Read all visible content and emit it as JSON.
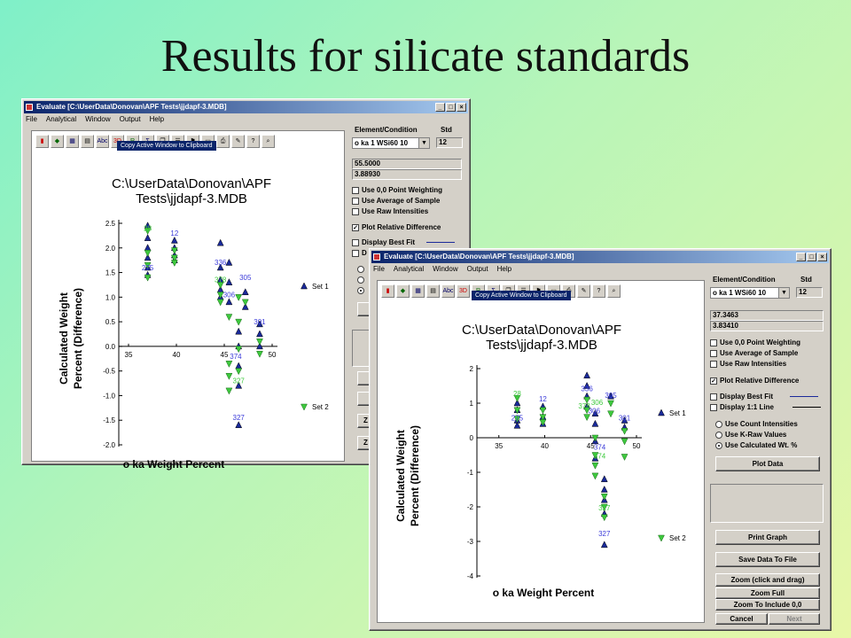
{
  "slide_title": "Results for silicate standards",
  "window_title": "Evaluate [C:\\UserData\\Donovan\\APF Tests\\jjdapf-3.MDB]",
  "menus": [
    "File",
    "Analytical",
    "Window",
    "Output",
    "Help"
  ],
  "title_buttons": [
    "_",
    "□",
    "×"
  ],
  "toolbar_icons": [
    "chart",
    "area",
    "table",
    "grid",
    "ABC",
    "3D",
    "RPT",
    "stat",
    "copy",
    "list",
    "flag",
    "folder",
    "print",
    "edit",
    "help",
    "magnify"
  ],
  "tooltip": "Copy Active Window to Clipboard",
  "colors": {
    "set1": "#1a2a9a",
    "set2": "#3ec93e",
    "label1": "#3b3bd9",
    "label2": "#3ec93e"
  },
  "panel": {
    "element_header": "Element/Condition",
    "std_header": "Std",
    "element_value": "o ka 1 WSi60 10",
    "std_value": "12",
    "options": [
      {
        "label": "Use 0,0 Point Weighting",
        "checked": false
      },
      {
        "label": "Use Average of Sample",
        "checked": false
      },
      {
        "label": "Use Raw Intensities",
        "checked": false
      }
    ],
    "plot_relative": {
      "label": "Plot Relative Difference",
      "checked": true
    },
    "best_fit": {
      "label": "Display Best Fit",
      "checked": false
    },
    "one_to_one": {
      "label": "Display 1:1 Line",
      "checked": false
    },
    "radios": [
      {
        "label": "Use Count Intensities",
        "on": false
      },
      {
        "label": "Use K-Raw Values",
        "on": false
      },
      {
        "label": "Use Calculated Wt. %",
        "on": true
      }
    ],
    "plot_button": "Plot Data",
    "print_button": "Print Graph",
    "save_button": "Save Data To File",
    "zoom_button": "Zoom (click and drag)",
    "zoom_full": "Zoom Full",
    "zoom_origin": "Zoom To Include 0,0",
    "cancel": "Cancel",
    "next": "Next"
  },
  "back_window": {
    "field1": "55.5000",
    "field2": "3.88930",
    "best_fit_partial": "D",
    "chart_title": [
      "C:\\UserData\\Donovan\\APF",
      "Tests\\jjdapf-3.MDB"
    ],
    "ylabel": [
      "Calculated Weight",
      "Percent (Difference)"
    ],
    "xlabel": "o ka Weight Percent",
    "x_ticks": [
      "35",
      "40",
      "45",
      "50"
    ],
    "y_ticks": [
      "2.5",
      "2.0",
      "1.5",
      "1.0",
      "0.5",
      "0.0",
      "-0.5",
      "-1.0",
      "-1.5",
      "-2.0"
    ],
    "legend": [
      "Set 1",
      "Set 2"
    ],
    "right_glyph": "Z"
  },
  "front_window": {
    "field1": "37.3463",
    "field2": "3.83410",
    "chart_title": [
      "C:\\UserData\\Donovan\\APF",
      "Tests\\jjdapf-3.MDB"
    ],
    "ylabel": [
      "Calculated Weight",
      "Percent (Difference)"
    ],
    "xlabel": "o ka Weight Percent",
    "x_ticks": [
      "35",
      "40",
      "45",
      "50"
    ],
    "y_ticks": [
      "2",
      "1",
      "0",
      "-1",
      "-2",
      "-3",
      "-4"
    ],
    "legend": [
      "Set 1",
      "Set 2"
    ]
  },
  "chart_data": [
    {
      "type": "scatter",
      "title": "C:\\UserData\\Donovan\\APF Tests\\jjdapf-3.MDB",
      "xlabel": "o ka Weight Percent",
      "ylabel": "Calculated Weight Percent (Difference)",
      "xlim": [
        30,
        50
      ],
      "ylim": [
        -2.0,
        2.5
      ],
      "series": [
        {
          "name": "Set 1",
          "marker": "triangle-up",
          "x": [
            37,
            37,
            37,
            37,
            37,
            37,
            39.8,
            39.8,
            39.8,
            39.8,
            44.6,
            44.6,
            44.6,
            44.6,
            44.6,
            45.5,
            45.5,
            45.5,
            46.5,
            46.5,
            46.5,
            46.5,
            46.5,
            47.2,
            47.2,
            48.7,
            48.7,
            48.7
          ],
          "y": [
            2.45,
            2.2,
            2.0,
            1.8,
            1.6,
            1.45,
            2.15,
            2.0,
            1.85,
            1.75,
            2.1,
            1.6,
            1.35,
            1.15,
            1.0,
            1.7,
            1.3,
            0.9,
            0.3,
            0.0,
            -0.4,
            -0.8,
            -1.6,
            1.1,
            0.8,
            0.45,
            0.25,
            0.0
          ]
        },
        {
          "name": "Set 2",
          "marker": "triangle-down",
          "x": [
            37,
            37,
            37,
            37,
            39.8,
            39.8,
            39.8,
            44.6,
            44.6,
            44.6,
            45.5,
            45.5,
            45.5,
            45.5,
            46.5,
            46.5,
            46.5,
            46.5,
            47.2,
            48.7,
            48.7
          ],
          "y": [
            2.35,
            1.9,
            1.65,
            1.4,
            1.95,
            1.8,
            1.7,
            1.25,
            1.05,
            0.9,
            0.6,
            -0.35,
            -0.6,
            -0.9,
            1.0,
            0.5,
            -0.05,
            -0.5,
            0.9,
            0.1,
            -0.15
          ]
        }
      ],
      "point_labels": [
        {
          "text": "28",
          "x": 37,
          "y": 2.35,
          "series": "Set 2"
        },
        {
          "text": "12",
          "x": 39.8,
          "y": 2.25,
          "series": "Set 1"
        },
        {
          "text": "275",
          "x": 37,
          "y": 1.55,
          "series": "Set 1"
        },
        {
          "text": "336",
          "x": 44.6,
          "y": 1.65,
          "series": "Set 1"
        },
        {
          "text": "378",
          "x": 44.6,
          "y": 1.3,
          "series": "Set 2"
        },
        {
          "text": "305",
          "x": 47.2,
          "y": 1.35,
          "series": "Set 1"
        },
        {
          "text": "306",
          "x": 45.5,
          "y": 1.0,
          "series": "Set 1"
        },
        {
          "text": "301",
          "x": 48.7,
          "y": 0.45,
          "series": "Set 1"
        },
        {
          "text": "374",
          "x": 46.2,
          "y": -0.25,
          "series": "Set 1"
        },
        {
          "text": "327",
          "x": 46.5,
          "y": -0.75,
          "series": "Set 2"
        },
        {
          "text": "327",
          "x": 46.5,
          "y": -1.5,
          "series": "Set 1"
        }
      ],
      "legend": "right"
    },
    {
      "type": "scatter",
      "title": "C:\\UserData\\Donovan\\APF Tests\\jjdapf-3.MDB",
      "xlabel": "o ka Weight Percent",
      "ylabel": "Calculated Weight Percent (Difference)",
      "xlim": [
        30,
        50
      ],
      "ylim": [
        -4,
        2
      ],
      "series": [
        {
          "name": "Set 1",
          "marker": "triangle-up",
          "x": [
            37,
            37,
            37,
            37,
            39.8,
            39.8,
            39.8,
            44.6,
            44.6,
            44.6,
            44.6,
            45.5,
            45.5,
            45.5,
            45.5,
            46.5,
            46.5,
            46.5,
            46.5,
            46.5,
            47.2,
            48.7,
            48.7
          ],
          "y": [
            1.0,
            0.8,
            0.5,
            0.35,
            0.9,
            0.6,
            0.4,
            1.8,
            1.5,
            1.2,
            0.9,
            0.7,
            0.4,
            -0.1,
            -0.6,
            -1.2,
            -1.5,
            -1.8,
            -2.2,
            -3.1,
            1.2,
            0.5,
            0.3
          ]
        },
        {
          "name": "Set 2",
          "marker": "triangle-down",
          "x": [
            37,
            37,
            37,
            39.8,
            39.8,
            39.8,
            44.6,
            44.6,
            44.6,
            45.5,
            45.5,
            45.5,
            45.5,
            46.5,
            46.5,
            46.5,
            47.2,
            47.2,
            48.7,
            48.7,
            48.7
          ],
          "y": [
            1.15,
            0.8,
            0.55,
            0.8,
            0.6,
            0.45,
            1.1,
            0.8,
            0.6,
            0.0,
            -0.5,
            -0.8,
            -1.1,
            -1.7,
            -2.0,
            -2.3,
            1.0,
            0.7,
            0.2,
            -0.1,
            -0.55
          ]
        }
      ],
      "point_labels": [
        {
          "text": "28",
          "x": 37,
          "y": 1.2,
          "series": "Set 2"
        },
        {
          "text": "12",
          "x": 39.8,
          "y": 1.05,
          "series": "Set 1"
        },
        {
          "text": "275",
          "x": 37,
          "y": 0.5,
          "series": "Set 1"
        },
        {
          "text": "336",
          "x": 44.6,
          "y": 1.35,
          "series": "Set 1"
        },
        {
          "text": "305",
          "x": 47.2,
          "y": 1.15,
          "series": "Set 1"
        },
        {
          "text": "306",
          "x": 45.7,
          "y": 0.95,
          "series": "Set 2"
        },
        {
          "text": "378",
          "x": 44.3,
          "y": 0.85,
          "series": "Set 2"
        },
        {
          "text": "306",
          "x": 45.4,
          "y": 0.7,
          "series": "Set 1"
        },
        {
          "text": "301",
          "x": 48.7,
          "y": 0.5,
          "series": "Set 1"
        },
        {
          "text": "374",
          "x": 46.0,
          "y": -0.35,
          "series": "Set 1"
        },
        {
          "text": "374",
          "x": 46.0,
          "y": -0.6,
          "series": "Set 2"
        },
        {
          "text": "327",
          "x": 46.5,
          "y": -2.1,
          "series": "Set 2"
        },
        {
          "text": "327",
          "x": 46.5,
          "y": -2.85,
          "series": "Set 1"
        }
      ],
      "legend": "right"
    }
  ]
}
